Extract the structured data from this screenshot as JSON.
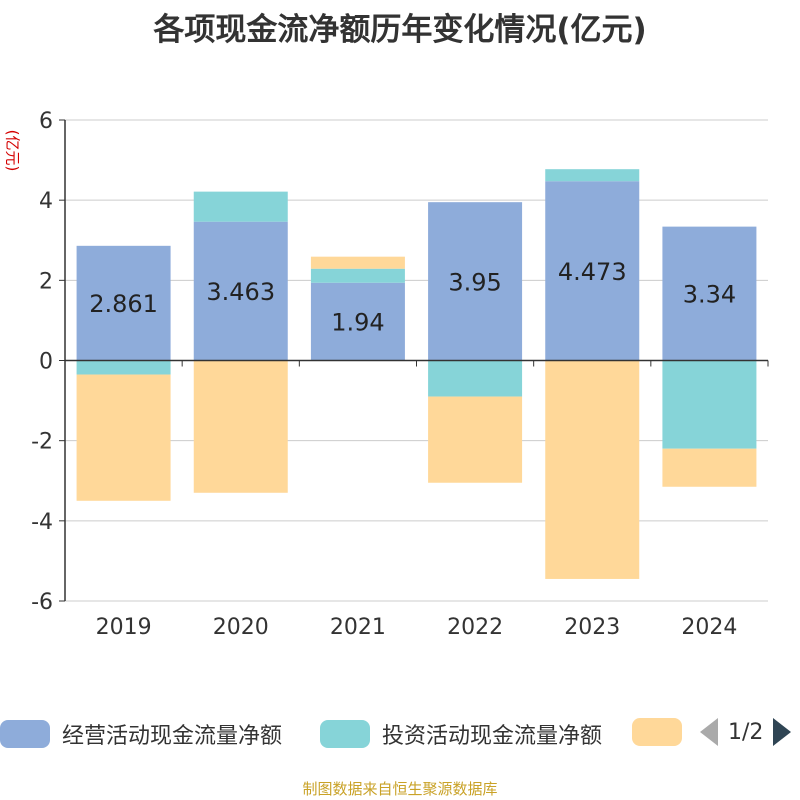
{
  "title": "各项现金流净额历年变化情况(亿元)",
  "unit_label": "(亿元)",
  "source": "制图数据来自恒生聚源数据库",
  "legend": {
    "items": [
      {
        "label": "经营活动现金流量净额",
        "color": "#8eacda"
      },
      {
        "label": "投资活动现金流量净额",
        "color": "#86d4d8"
      },
      {
        "label": "",
        "color": "#ffd899"
      }
    ],
    "page": "1/2"
  },
  "chart_data": {
    "type": "bar",
    "stacked": true,
    "categories": [
      "2019",
      "2020",
      "2021",
      "2022",
      "2023",
      "2024"
    ],
    "ylim": [
      -6,
      6
    ],
    "yticks": [
      6,
      4,
      2,
      0,
      -2,
      -4,
      -6
    ],
    "grid": true,
    "legend_position": "bottom",
    "series": [
      {
        "name": "经营活动现金流量净额",
        "color": "#8eacda",
        "values": [
          2.861,
          3.463,
          1.94,
          3.95,
          4.473,
          3.34
        ],
        "labels": [
          "2.861",
          "3.463",
          "1.94",
          "3.95",
          "4.473",
          "3.34"
        ]
      },
      {
        "name": "投资活动现金流量净额",
        "color": "#86d4d8",
        "values": [
          -0.35,
          0.75,
          0.35,
          -0.9,
          0.3,
          -2.2
        ]
      },
      {
        "color": "#ffd899",
        "values": [
          -3.15,
          -3.3,
          0.3,
          -2.15,
          -5.45,
          -0.95
        ]
      }
    ]
  }
}
